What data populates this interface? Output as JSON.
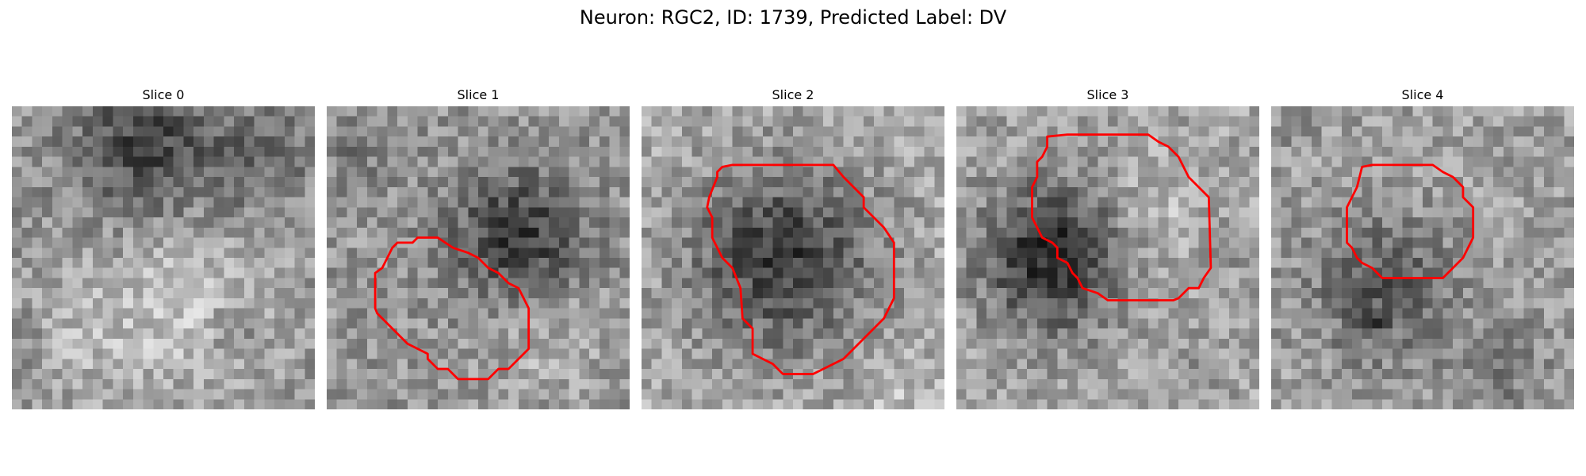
{
  "figure": {
    "title": "Neuron: RGC2, ID: 1739, Predicted Label: DV"
  },
  "contour_color": "#ff0000",
  "colormap": "gray",
  "slices": [
    {
      "title": "Slice 0",
      "has_contour": false
    },
    {
      "title": "Slice 1",
      "has_contour": true
    },
    {
      "title": "Slice 2",
      "has_contour": true
    },
    {
      "title": "Slice 3",
      "has_contour": true
    },
    {
      "title": "Slice 4",
      "has_contour": true
    }
  ]
}
